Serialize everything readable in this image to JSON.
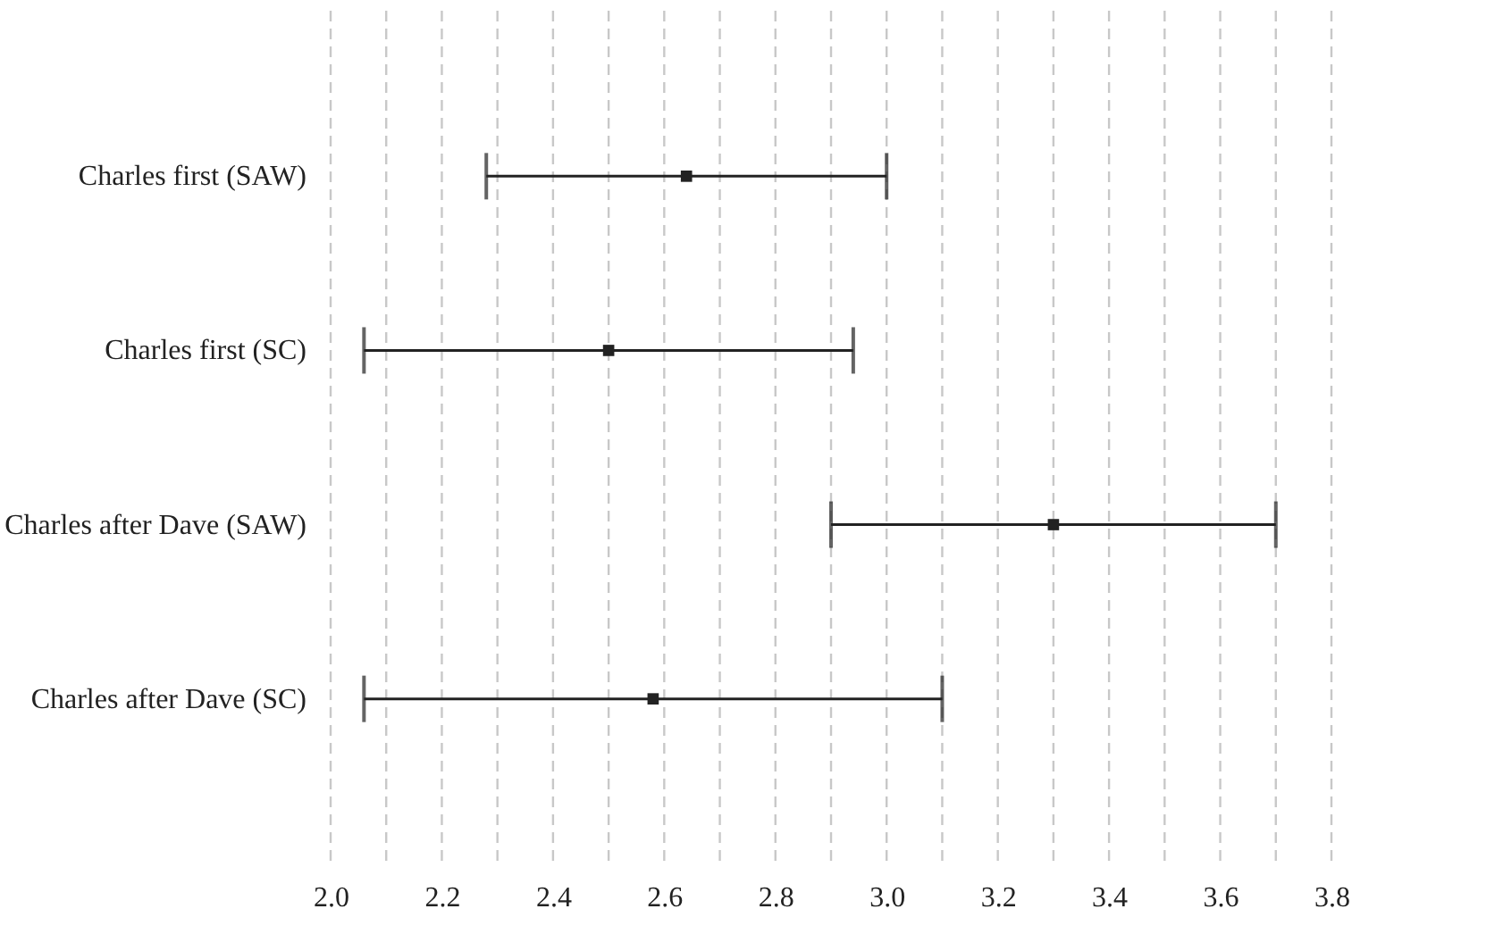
{
  "chart_data": {
    "type": "scatter",
    "categories": [
      "Charles first (SAW)",
      "Charles first (SC)",
      "Charles after Dave (SAW)",
      "Charles after Dave (SC)"
    ],
    "orientation": "horizontal",
    "series": [
      {
        "color": "#222222",
        "values": [
          2.64,
          2.5,
          3.3,
          2.58
        ],
        "errors": [
          0.36,
          0.44,
          0.4,
          0.52
        ]
      }
    ],
    "xlim": [
      2.0,
      3.8
    ],
    "xticks": [
      {
        "value": 2.0,
        "label": "2.0"
      },
      {
        "value": 2.1,
        "label": null
      },
      {
        "value": 2.2,
        "label": "2.2"
      },
      {
        "value": 2.3,
        "label": null
      },
      {
        "value": 2.4,
        "label": "2.4"
      },
      {
        "value": 2.5,
        "label": null
      },
      {
        "value": 2.6,
        "label": "2.6"
      },
      {
        "value": 2.7,
        "label": null
      },
      {
        "value": 2.8,
        "label": "2.8"
      },
      {
        "value": 2.9,
        "label": null
      },
      {
        "value": 3.0,
        "label": "3.0"
      },
      {
        "value": 3.1,
        "label": null
      },
      {
        "value": 3.2,
        "label": "3.2"
      },
      {
        "value": 3.3,
        "label": null
      },
      {
        "value": 3.4,
        "label": "3.4"
      },
      {
        "value": 3.5,
        "label": null
      },
      {
        "value": 3.6,
        "label": "3.6"
      },
      {
        "value": 3.7,
        "label": null
      },
      {
        "value": 3.8,
        "label": "3.8"
      }
    ],
    "grid": "x",
    "marker": "square"
  }
}
